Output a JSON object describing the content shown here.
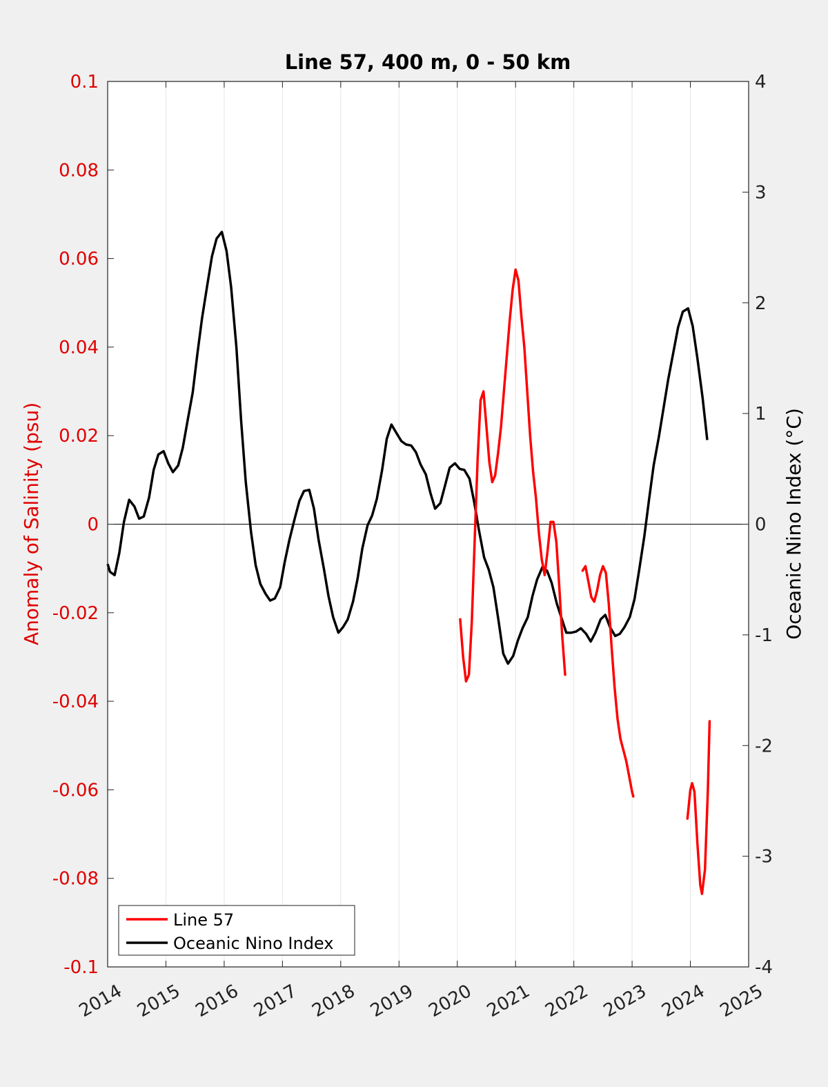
{
  "chart_data": {
    "type": "line",
    "title": "Line 57, 400 m, 0 - 50 km",
    "xlabel": "",
    "ylabel_left": "Anomaly of Salinity (psu)",
    "ylabel_right": "Oceanic Nino Index (°C)",
    "xlim": [
      2014,
      2025
    ],
    "ylim_left": [
      -0.1,
      0.1
    ],
    "ylim_right": [
      -4,
      4
    ],
    "x_ticks": [
      "2014",
      "2015",
      "2016",
      "2017",
      "2018",
      "2019",
      "2020",
      "2021",
      "2022",
      "2023",
      "2024",
      "2025"
    ],
    "y_ticks_left": [
      "-0.1",
      "-0.08",
      "-0.06",
      "-0.04",
      "-0.02",
      "0",
      "0.02",
      "0.04",
      "0.06",
      "0.08",
      "0.1"
    ],
    "y_ticks_right": [
      "-4",
      "-3",
      "-2",
      "-1",
      "0",
      "1",
      "2",
      "3",
      "4"
    ],
    "grid": "vertical",
    "legend_position": "bottom-left",
    "colors": {
      "salinity": "#ff0000",
      "oni": "#000000",
      "left_axis": "#e00000"
    },
    "series": [
      {
        "name": "Line 57",
        "axis": "left",
        "segments": [
          [
            [
              2020.05,
              -0.0215
            ],
            [
              2020.1,
              -0.03
            ],
            [
              2020.15,
              -0.0355
            ],
            [
              2020.2,
              -0.034
            ],
            [
              2020.25,
              -0.022
            ],
            [
              2020.3,
              -0.003
            ],
            [
              2020.35,
              0.015
            ],
            [
              2020.4,
              0.028
            ],
            [
              2020.45,
              0.03
            ],
            [
              2020.5,
              0.022
            ],
            [
              2020.55,
              0.014
            ],
            [
              2020.6,
              0.0095
            ],
            [
              2020.65,
              0.011
            ],
            [
              2020.7,
              0.016
            ],
            [
              2020.75,
              0.022
            ],
            [
              2020.8,
              0.03
            ],
            [
              2020.85,
              0.038
            ],
            [
              2020.9,
              0.046
            ],
            [
              2020.95,
              0.053
            ],
            [
              2021.0,
              0.0575
            ],
            [
              2021.05,
              0.055
            ],
            [
              2021.1,
              0.047
            ],
            [
              2021.15,
              0.04
            ],
            [
              2021.2,
              0.03
            ],
            [
              2021.25,
              0.02
            ],
            [
              2021.3,
              0.012
            ],
            [
              2021.35,
              0.006
            ],
            [
              2021.4,
              -0.002
            ],
            [
              2021.45,
              -0.008
            ],
            [
              2021.5,
              -0.0115
            ],
            [
              2021.55,
              -0.006
            ],
            [
              2021.6,
              0.0005
            ],
            [
              2021.65,
              0.0005
            ],
            [
              2021.7,
              -0.004
            ],
            [
              2021.75,
              -0.014
            ],
            [
              2021.8,
              -0.025
            ],
            [
              2021.85,
              -0.034
            ]
          ],
          [
            [
              2022.15,
              -0.0105
            ],
            [
              2022.2,
              -0.0095
            ],
            [
              2022.25,
              -0.013
            ],
            [
              2022.3,
              -0.0165
            ],
            [
              2022.35,
              -0.0175
            ],
            [
              2022.4,
              -0.015
            ],
            [
              2022.45,
              -0.0115
            ],
            [
              2022.5,
              -0.0095
            ],
            [
              2022.55,
              -0.011
            ],
            [
              2022.6,
              -0.018
            ],
            [
              2022.65,
              -0.028
            ],
            [
              2022.7,
              -0.037
            ],
            [
              2022.75,
              -0.044
            ],
            [
              2022.8,
              -0.0485
            ],
            [
              2022.85,
              -0.051
            ],
            [
              2022.9,
              -0.0535
            ],
            [
              2022.95,
              -0.057
            ],
            [
              2023.0,
              -0.0605
            ],
            [
              2023.02,
              -0.0615
            ]
          ],
          [
            [
              2023.95,
              -0.0665
            ],
            [
              2024.0,
              -0.06
            ],
            [
              2024.03,
              -0.0585
            ],
            [
              2024.07,
              -0.0605
            ],
            [
              2024.12,
              -0.072
            ],
            [
              2024.17,
              -0.0815
            ],
            [
              2024.2,
              -0.0835
            ],
            [
              2024.25,
              -0.078
            ],
            [
              2024.3,
              -0.06
            ],
            [
              2024.33,
              -0.0445
            ]
          ]
        ]
      },
      {
        "name": "Oceanic Nino Index",
        "axis": "right",
        "points": [
          [
            2014.0,
            -0.36
          ],
          [
            2014.04,
            -0.43
          ],
          [
            2014.12,
            -0.46
          ],
          [
            2014.2,
            -0.26
          ],
          [
            2014.28,
            0.02
          ],
          [
            2014.37,
            0.22
          ],
          [
            2014.46,
            0.16
          ],
          [
            2014.54,
            0.05
          ],
          [
            2014.62,
            0.07
          ],
          [
            2014.71,
            0.24
          ],
          [
            2014.79,
            0.49
          ],
          [
            2014.87,
            0.63
          ],
          [
            2014.96,
            0.66
          ],
          [
            2015.04,
            0.55
          ],
          [
            2015.12,
            0.47
          ],
          [
            2015.21,
            0.53
          ],
          [
            2015.29,
            0.69
          ],
          [
            2015.37,
            0.93
          ],
          [
            2015.46,
            1.19
          ],
          [
            2015.54,
            1.54
          ],
          [
            2015.62,
            1.86
          ],
          [
            2015.71,
            2.16
          ],
          [
            2015.79,
            2.42
          ],
          [
            2015.87,
            2.58
          ],
          [
            2015.96,
            2.64
          ],
          [
            2016.04,
            2.47
          ],
          [
            2016.12,
            2.14
          ],
          [
            2016.21,
            1.6
          ],
          [
            2016.29,
            0.94
          ],
          [
            2016.37,
            0.38
          ],
          [
            2016.46,
            -0.07
          ],
          [
            2016.54,
            -0.37
          ],
          [
            2016.62,
            -0.54
          ],
          [
            2016.71,
            -0.63
          ],
          [
            2016.79,
            -0.69
          ],
          [
            2016.87,
            -0.67
          ],
          [
            2016.96,
            -0.57
          ],
          [
            2017.04,
            -0.34
          ],
          [
            2017.12,
            -0.14
          ],
          [
            2017.21,
            0.05
          ],
          [
            2017.29,
            0.21
          ],
          [
            2017.37,
            0.3
          ],
          [
            2017.46,
            0.31
          ],
          [
            2017.54,
            0.14
          ],
          [
            2017.62,
            -0.14
          ],
          [
            2017.71,
            -0.4
          ],
          [
            2017.79,
            -0.65
          ],
          [
            2017.87,
            -0.84
          ],
          [
            2017.96,
            -0.98
          ],
          [
            2018.04,
            -0.93
          ],
          [
            2018.12,
            -0.86
          ],
          [
            2018.21,
            -0.7
          ],
          [
            2018.29,
            -0.49
          ],
          [
            2018.37,
            -0.22
          ],
          [
            2018.46,
            -0.01
          ],
          [
            2018.54,
            0.08
          ],
          [
            2018.62,
            0.23
          ],
          [
            2018.71,
            0.49
          ],
          [
            2018.79,
            0.77
          ],
          [
            2018.87,
            0.9
          ],
          [
            2018.96,
            0.82
          ],
          [
            2019.04,
            0.75
          ],
          [
            2019.12,
            0.72
          ],
          [
            2019.21,
            0.71
          ],
          [
            2019.29,
            0.65
          ],
          [
            2019.37,
            0.54
          ],
          [
            2019.46,
            0.45
          ],
          [
            2019.54,
            0.28
          ],
          [
            2019.62,
            0.14
          ],
          [
            2019.71,
            0.19
          ],
          [
            2019.79,
            0.35
          ],
          [
            2019.87,
            0.51
          ],
          [
            2019.96,
            0.55
          ],
          [
            2020.04,
            0.5
          ],
          [
            2020.12,
            0.49
          ],
          [
            2020.21,
            0.41
          ],
          [
            2020.29,
            0.2
          ],
          [
            2020.37,
            -0.05
          ],
          [
            2020.46,
            -0.3
          ],
          [
            2020.54,
            -0.41
          ],
          [
            2020.62,
            -0.57
          ],
          [
            2020.71,
            -0.88
          ],
          [
            2020.79,
            -1.17
          ],
          [
            2020.87,
            -1.26
          ],
          [
            2020.96,
            -1.19
          ],
          [
            2021.04,
            -1.05
          ],
          [
            2021.12,
            -0.94
          ],
          [
            2021.21,
            -0.84
          ],
          [
            2021.29,
            -0.65
          ],
          [
            2021.37,
            -0.5
          ],
          [
            2021.46,
            -0.39
          ],
          [
            2021.54,
            -0.42
          ],
          [
            2021.62,
            -0.53
          ],
          [
            2021.71,
            -0.72
          ],
          [
            2021.79,
            -0.85
          ],
          [
            2021.87,
            -0.98
          ],
          [
            2021.96,
            -0.98
          ],
          [
            2022.04,
            -0.97
          ],
          [
            2022.12,
            -0.94
          ],
          [
            2022.21,
            -0.99
          ],
          [
            2022.29,
            -1.06
          ],
          [
            2022.37,
            -0.98
          ],
          [
            2022.46,
            -0.86
          ],
          [
            2022.54,
            -0.82
          ],
          [
            2022.62,
            -0.93
          ],
          [
            2022.71,
            -1.01
          ],
          [
            2022.79,
            -0.99
          ],
          [
            2022.87,
            -0.93
          ],
          [
            2022.96,
            -0.84
          ],
          [
            2023.04,
            -0.68
          ],
          [
            2023.12,
            -0.42
          ],
          [
            2023.21,
            -0.11
          ],
          [
            2023.29,
            0.22
          ],
          [
            2023.37,
            0.53
          ],
          [
            2023.46,
            0.79
          ],
          [
            2023.54,
            1.05
          ],
          [
            2023.62,
            1.31
          ],
          [
            2023.71,
            1.56
          ],
          [
            2023.79,
            1.78
          ],
          [
            2023.87,
            1.92
          ],
          [
            2023.96,
            1.95
          ],
          [
            2024.04,
            1.79
          ],
          [
            2024.12,
            1.5
          ],
          [
            2024.21,
            1.14
          ],
          [
            2024.29,
            0.76
          ]
        ]
      }
    ]
  },
  "legend": {
    "items": [
      {
        "label": "Line 57",
        "color": "#ff0000"
      },
      {
        "label": "Oceanic Nino Index",
        "color": "#000000"
      }
    ]
  }
}
